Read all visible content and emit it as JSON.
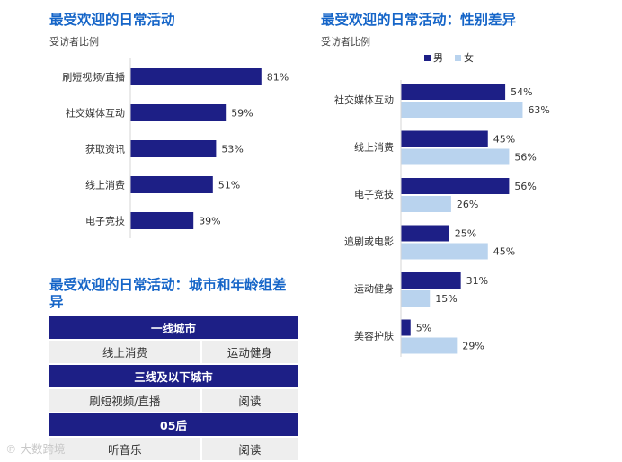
{
  "chart_data": [
    {
      "type": "bar",
      "orientation": "horizontal",
      "title": "最受欢迎的日常活动",
      "subtitle": "受访者比例",
      "categories": [
        "刷短视频/直播",
        "社交媒体互动",
        "获取资讯",
        "线上消费",
        "电子竞技"
      ],
      "values": [
        81,
        59,
        53,
        51,
        39
      ],
      "value_labels": [
        "81%",
        "59%",
        "53%",
        "51%",
        "39%"
      ],
      "unit": "%",
      "xlim": [
        0,
        100
      ],
      "grid": false,
      "color": "#1d1f86"
    },
    {
      "type": "bar",
      "orientation": "horizontal",
      "title": "最受欢迎的日常活动：性别差异",
      "subtitle": "受访者比例",
      "categories": [
        "社交媒体互动",
        "线上消费",
        "电子竞技",
        "追剧或电影",
        "运动健身",
        "美容护肤"
      ],
      "series": [
        {
          "name": "男",
          "color": "#1d1f86",
          "values": [
            54,
            45,
            56,
            25,
            31,
            5
          ],
          "labels": [
            "54%",
            "45%",
            "56%",
            "25%",
            "31%",
            "5%"
          ]
        },
        {
          "name": "女",
          "color": "#b9d3ee",
          "values": [
            63,
            56,
            26,
            45,
            15,
            29
          ],
          "labels": [
            "63%",
            "56%",
            "26%",
            "45%",
            "15%",
            "29%"
          ]
        }
      ],
      "unit": "%",
      "xlim": [
        0,
        100
      ],
      "legend": "top-left",
      "grid": false
    },
    {
      "type": "table",
      "title": "最受欢迎的日常活动：城市和年龄组差异",
      "groups": [
        {
          "header": "一线城市",
          "items": [
            "线上消费",
            "运动健身"
          ]
        },
        {
          "header": "三线及以下城市",
          "items": [
            "刷短视频/直播",
            "阅读"
          ]
        },
        {
          "header": "05后",
          "items": [
            "听音乐",
            "阅读"
          ]
        }
      ]
    }
  ],
  "watermark": "大数跨境"
}
